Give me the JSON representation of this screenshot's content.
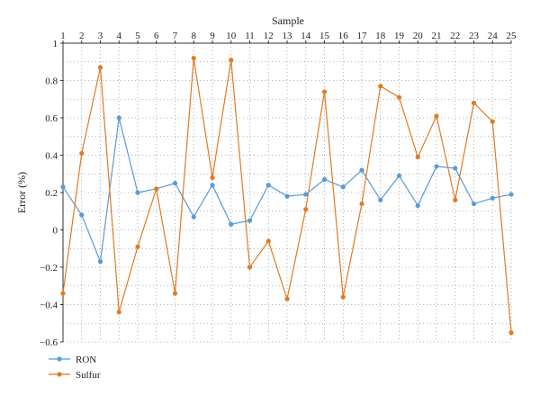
{
  "chart_data": {
    "type": "line",
    "xlabel": "Sample",
    "ylabel": "Error (%)",
    "x": [
      1,
      2,
      3,
      4,
      5,
      6,
      7,
      8,
      9,
      10,
      11,
      12,
      13,
      14,
      15,
      16,
      17,
      18,
      19,
      20,
      21,
      22,
      23,
      24,
      25
    ],
    "xlim": [
      1,
      25
    ],
    "ylim": [
      -0.6,
      1
    ],
    "yticks": [
      -0.6,
      -0.4,
      -0.2,
      0,
      0.2,
      0.4,
      0.6,
      0.8,
      1
    ],
    "ytick_labels": [
      "−0.6",
      "−0.4",
      "−0.2",
      "0",
      "0.2",
      "0.4",
      "0.6",
      "0.8",
      "1"
    ],
    "x_axis_position": "top",
    "grid": true,
    "legend_position": "bottom-left",
    "series": [
      {
        "name": "RON",
        "color": "#5b9bd5",
        "values": [
          0.23,
          0.08,
          -0.17,
          0.6,
          0.2,
          0.22,
          0.25,
          0.07,
          0.24,
          0.03,
          0.05,
          0.24,
          0.18,
          0.19,
          0.27,
          0.23,
          0.32,
          0.16,
          0.29,
          0.13,
          0.34,
          0.33,
          0.14,
          0.17,
          0.19
        ]
      },
      {
        "name": "Sulfur",
        "color": "#e07b24",
        "values": [
          -0.34,
          0.41,
          0.87,
          -0.44,
          -0.09,
          0.22,
          -0.34,
          0.92,
          0.28,
          0.91,
          -0.2,
          -0.06,
          -0.37,
          0.11,
          0.74,
          -0.36,
          0.14,
          0.77,
          0.71,
          0.39,
          0.61,
          0.16,
          0.68,
          0.58,
          -0.55
        ]
      }
    ]
  }
}
